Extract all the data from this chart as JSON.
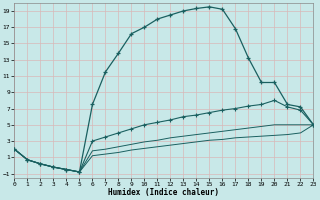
{
  "xlabel": "Humidex (Indice chaleur)",
  "bg_color": "#c8e8e8",
  "grid_color": "#e8e8e8",
  "line_color": "#1a6060",
  "xlim": [
    0,
    23
  ],
  "ylim": [
    -1.5,
    20
  ],
  "xticks": [
    0,
    1,
    2,
    3,
    4,
    5,
    6,
    7,
    8,
    9,
    10,
    11,
    12,
    13,
    14,
    15,
    16,
    17,
    18,
    19,
    20,
    21,
    22,
    23
  ],
  "yticks": [
    -1,
    1,
    3,
    5,
    7,
    9,
    11,
    13,
    15,
    17,
    19
  ],
  "line1_x": [
    0,
    1,
    2,
    3,
    4,
    5,
    6,
    7,
    8,
    9,
    10,
    11,
    12,
    13,
    14,
    15,
    16,
    17,
    18,
    19,
    20,
    21,
    22,
    23
  ],
  "line1_y": [
    2.0,
    0.7,
    0.2,
    -0.2,
    -0.5,
    -0.8,
    7.5,
    11.5,
    13.8,
    16.2,
    17.0,
    18.0,
    18.5,
    19.0,
    19.3,
    19.5,
    19.2,
    16.8,
    13.2,
    10.2,
    10.2,
    7.5,
    7.2,
    5.0
  ],
  "line2_x": [
    0,
    1,
    2,
    3,
    4,
    5,
    6,
    7,
    8,
    9,
    10,
    11,
    12,
    13,
    14,
    15,
    16,
    17,
    18,
    19,
    20,
    21,
    22,
    23
  ],
  "line2_y": [
    2.0,
    0.7,
    0.2,
    -0.2,
    -0.5,
    -0.8,
    3.0,
    3.5,
    4.0,
    4.5,
    5.0,
    5.3,
    5.6,
    6.0,
    6.2,
    6.5,
    6.8,
    7.0,
    7.3,
    7.5,
    8.0,
    7.2,
    6.8,
    5.0
  ],
  "line3_x": [
    0,
    1,
    2,
    3,
    4,
    5,
    6,
    7,
    8,
    9,
    10,
    11,
    12,
    13,
    14,
    15,
    16,
    17,
    18,
    19,
    20,
    21,
    22,
    23
  ],
  "line3_y": [
    2.0,
    0.7,
    0.2,
    -0.2,
    -0.5,
    -0.8,
    1.8,
    2.0,
    2.3,
    2.6,
    2.9,
    3.1,
    3.4,
    3.6,
    3.8,
    4.0,
    4.2,
    4.4,
    4.6,
    4.8,
    5.0,
    5.0,
    5.0,
    5.0
  ],
  "line4_x": [
    0,
    1,
    2,
    3,
    4,
    5,
    6,
    7,
    8,
    9,
    10,
    11,
    12,
    13,
    14,
    15,
    16,
    17,
    18,
    19,
    20,
    21,
    22,
    23
  ],
  "line4_y": [
    2.0,
    0.7,
    0.2,
    -0.2,
    -0.5,
    -0.8,
    1.2,
    1.4,
    1.6,
    1.9,
    2.1,
    2.3,
    2.5,
    2.7,
    2.9,
    3.1,
    3.2,
    3.4,
    3.5,
    3.6,
    3.7,
    3.8,
    4.0,
    5.0
  ]
}
